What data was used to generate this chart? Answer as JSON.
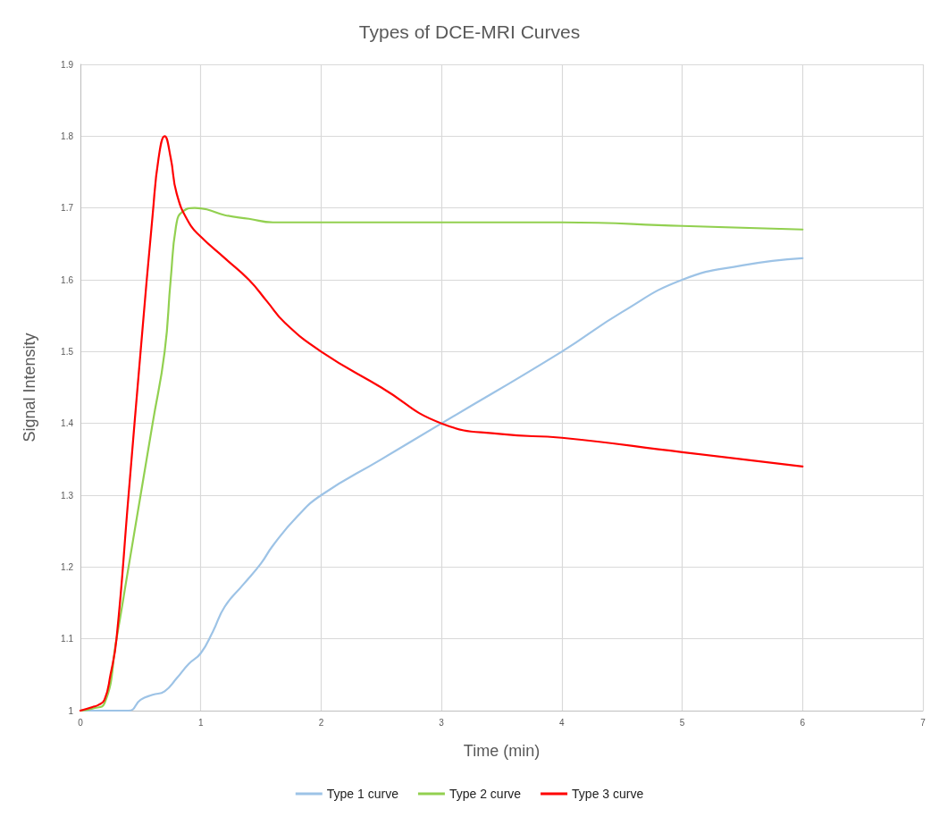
{
  "chart_data": {
    "type": "line",
    "title": "Types of DCE-MRI Curves",
    "xlabel": "Time (min)",
    "ylabel": "Signal Intensity",
    "xlim": [
      0,
      7
    ],
    "xticks": [
      0,
      1,
      2,
      3,
      4,
      5,
      6,
      7
    ],
    "ylim": [
      1,
      1.9
    ],
    "yticks": [
      1,
      1.1,
      1.2,
      1.3,
      1.4,
      1.5,
      1.6,
      1.7,
      1.8,
      1.9
    ],
    "grid": true,
    "legend": "bottom",
    "marker": "none",
    "line_style": "solid",
    "series": [
      {
        "name": "Type 1 curve",
        "color": "#9dc3e6",
        "x": [
          0,
          0.4,
          0.5,
          0.6,
          0.7,
          0.8,
          0.9,
          1.0,
          1.1,
          1.2,
          1.35,
          1.5,
          1.6,
          1.8,
          2,
          2.5,
          3,
          4,
          4.5,
          5,
          5.5,
          6
        ],
        "values": [
          1,
          1,
          1.015,
          1.022,
          1.027,
          1.045,
          1.065,
          1.08,
          1.11,
          1.145,
          1.175,
          1.205,
          1.23,
          1.27,
          1.3,
          1.35,
          1.4,
          1.5,
          1.555,
          1.6,
          1.62,
          1.63
        ]
      },
      {
        "name": "Type 2 curve",
        "color": "#92d050",
        "x": [
          0,
          0.1,
          0.2,
          0.3,
          0.4,
          0.5,
          0.6,
          0.7,
          0.75,
          0.8,
          0.85,
          0.95,
          1.05,
          1.2,
          1.4,
          1.6,
          2,
          3,
          4,
          5,
          6
        ],
        "values": [
          1,
          1.003,
          1.01,
          1.1,
          1.2,
          1.3,
          1.4,
          1.5,
          1.6,
          1.68,
          1.695,
          1.7,
          1.698,
          1.69,
          1.685,
          1.68,
          1.68,
          1.68,
          1.68,
          1.675,
          1.67
        ]
      },
      {
        "name": "Type 3 curve",
        "color": "#ff0000",
        "x": [
          0,
          0.1,
          0.15,
          0.2,
          0.25,
          0.3,
          0.4,
          0.5,
          0.6,
          0.65,
          0.7,
          0.75,
          0.8,
          0.9,
          1.0,
          1.2,
          1.4,
          1.55,
          1.7,
          2,
          2.5,
          3,
          3.5,
          4,
          5,
          6
        ],
        "values": [
          1,
          1.005,
          1.008,
          1.015,
          1.05,
          1.1,
          1.3,
          1.5,
          1.69,
          1.77,
          1.8,
          1.77,
          1.72,
          1.68,
          1.66,
          1.63,
          1.6,
          1.57,
          1.54,
          1.5,
          1.45,
          1.4,
          1.385,
          1.38,
          1.36,
          1.34
        ]
      }
    ]
  }
}
